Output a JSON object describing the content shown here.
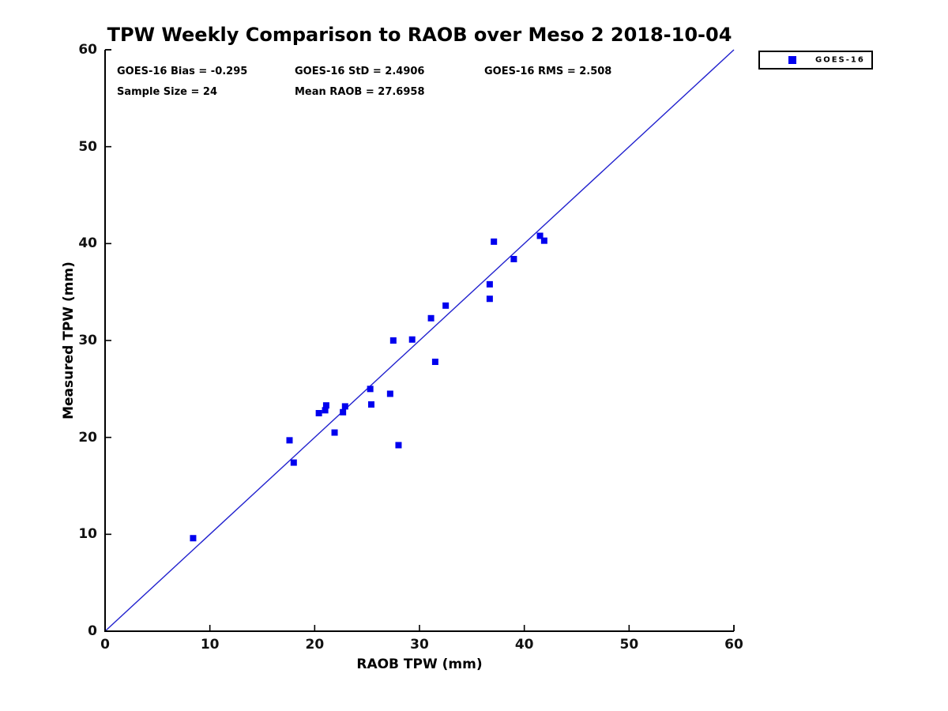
{
  "title": "TPW Weekly Comparison to RAOB over Meso 2 2018-10-04",
  "stats": {
    "bias": "GOES-16 Bias = -0.295",
    "std": "GOES-16 StD = 2.4906",
    "rms": "GOES-16 RMS = 2.508",
    "sample_size": "Sample Size = 24",
    "mean_raob": "Mean RAOB = 27.6958"
  },
  "legend": {
    "label": "GOES-16",
    "marker_color": "#0000EE"
  },
  "colors": {
    "marker": "#0000EE",
    "reference_line": "#2121CE",
    "axis": "#000000",
    "tick_text": "#111111"
  },
  "chart_data": {
    "type": "scatter",
    "title": "TPW Weekly Comparison to RAOB over Meso 2 2018-10-04",
    "xlabel": "RAOB TPW (mm)",
    "ylabel": "Measured TPW (mm)",
    "xlim": [
      0,
      60
    ],
    "ylim": [
      0,
      60
    ],
    "xticks": [
      0,
      10,
      20,
      30,
      40,
      50,
      60
    ],
    "yticks": [
      0,
      10,
      20,
      30,
      40,
      50,
      60
    ],
    "grid": false,
    "legend_position": "top-right-outside",
    "reference_line": {
      "from": [
        0,
        0
      ],
      "to": [
        60,
        60
      ],
      "description": "1:1 line"
    },
    "annotations": [
      "GOES-16 Bias = -0.295",
      "GOES-16 StD = 2.4906",
      "GOES-16 RMS = 2.508",
      "Sample Size = 24",
      "Mean RAOB = 27.6958"
    ],
    "series": [
      {
        "name": "GOES-16",
        "marker": "filled-square",
        "color": "#0000EE",
        "points": [
          [
            8.4,
            9.6
          ],
          [
            17.6,
            19.7
          ],
          [
            18.0,
            17.4
          ],
          [
            20.4,
            22.5
          ],
          [
            21.0,
            22.8
          ],
          [
            21.1,
            23.3
          ],
          [
            21.9,
            20.5
          ],
          [
            22.7,
            22.6
          ],
          [
            22.9,
            23.2
          ],
          [
            25.3,
            25.0
          ],
          [
            25.4,
            23.4
          ],
          [
            27.2,
            24.5
          ],
          [
            27.5,
            30.0
          ],
          [
            28.0,
            19.2
          ],
          [
            29.3,
            30.1
          ],
          [
            31.1,
            32.3
          ],
          [
            31.5,
            27.8
          ],
          [
            32.5,
            33.6
          ],
          [
            36.7,
            34.3
          ],
          [
            36.7,
            35.8
          ],
          [
            37.1,
            40.2
          ],
          [
            39.0,
            38.4
          ],
          [
            41.5,
            40.8
          ],
          [
            41.9,
            40.3
          ]
        ]
      }
    ]
  }
}
